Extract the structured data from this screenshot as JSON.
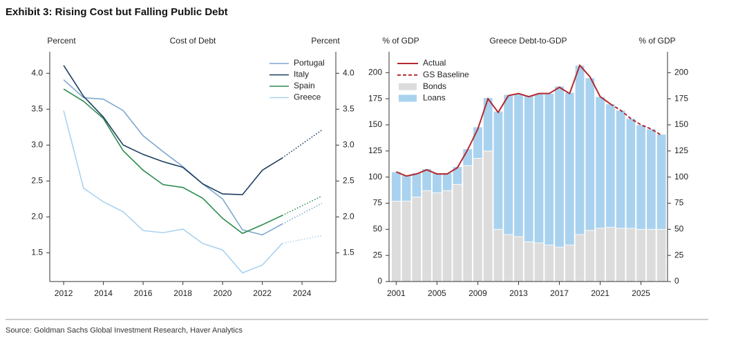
{
  "title": "Exhibit 3: Rising Cost but Falling Public Debt",
  "source": "Source: Goldman Sachs Global Investment Research, Haver Analytics",
  "chart_data": [
    {
      "type": "line",
      "title": "Cost of Debt",
      "y_label": "Percent",
      "y2_label": "Percent",
      "mirror_y": true,
      "forecast_from": 2023,
      "legend": "top-right",
      "x": [
        2012,
        2013,
        2014,
        2015,
        2016,
        2017,
        2018,
        2019,
        2020,
        2021,
        2022,
        2023,
        2025
      ],
      "xlim": [
        2011.3,
        2025.7
      ],
      "xticks": [
        2012,
        2014,
        2016,
        2018,
        2020,
        2022,
        2024
      ],
      "ylim": [
        1.1,
        4.3
      ],
      "yticks": [
        {
          "value": 1.5,
          "label": "1.5"
        },
        {
          "value": 2,
          "label": "2.0"
        },
        {
          "value": 2.5,
          "label": "2.5"
        },
        {
          "value": 3,
          "label": "3.0"
        },
        {
          "value": 3.5,
          "label": "3.5"
        },
        {
          "value": 4,
          "label": "4.0"
        }
      ],
      "series": [
        {
          "name": "Portugal",
          "color": "#7fa7d0",
          "values": [
            3.91,
            3.66,
            3.64,
            3.48,
            3.13,
            2.91,
            2.7,
            2.46,
            2.25,
            1.82,
            1.75,
            1.9,
            2.19
          ]
        },
        {
          "name": "Italy",
          "color": "#1b3d5f",
          "values": [
            4.11,
            3.68,
            3.39,
            3.0,
            2.87,
            2.77,
            2.69,
            2.46,
            2.32,
            2.31,
            2.65,
            2.82,
            3.21
          ]
        },
        {
          "name": "Spain",
          "color": "#2b8c4e",
          "values": [
            3.78,
            3.61,
            3.37,
            2.92,
            2.65,
            2.45,
            2.41,
            2.26,
            1.98,
            1.77,
            1.89,
            2.02,
            2.29
          ]
        },
        {
          "name": "Greece",
          "color": "#a9d2f0",
          "values": [
            3.48,
            2.4,
            2.21,
            2.07,
            1.81,
            1.78,
            1.83,
            1.63,
            1.54,
            1.22,
            1.33,
            1.63,
            1.74
          ]
        }
      ]
    },
    {
      "type": "bar",
      "stacked": true,
      "title": "Greece Debt-to-GDP",
      "y_label": "% of GDP",
      "y2_label": "% of GDP",
      "mirror_y": true,
      "legend": "top-left",
      "x": [
        2001,
        2002,
        2003,
        2004,
        2005,
        2006,
        2007,
        2008,
        2009,
        2010,
        2011,
        2012,
        2013,
        2014,
        2015,
        2016,
        2017,
        2018,
        2019,
        2020,
        2021,
        2022,
        2023,
        2024,
        2025,
        2026,
        2027
      ],
      "xlim": [
        2000.3,
        2027.6
      ],
      "xticks": [
        2001,
        2005,
        2009,
        2013,
        2017,
        2021,
        2025
      ],
      "ylim": [
        0,
        220
      ],
      "yticks": [
        0,
        25,
        50,
        75,
        100,
        125,
        150,
        175,
        200
      ],
      "series": [
        {
          "name": "Actual",
          "type": "line",
          "color": "#b3282d",
          "values": [
            105,
            101,
            103,
            107,
            103,
            103,
            109,
            126,
            146,
            175,
            162,
            178,
            180,
            177,
            180,
            180,
            186,
            180,
            207,
            196,
            177,
            170,
            null,
            null,
            null,
            null,
            null
          ]
        },
        {
          "name": "GS Baseline",
          "type": "line",
          "dashed": true,
          "color": "#b3282d",
          "values": [
            null,
            null,
            null,
            null,
            null,
            null,
            null,
            null,
            null,
            null,
            null,
            null,
            null,
            null,
            null,
            null,
            null,
            null,
            null,
            null,
            null,
            170,
            164,
            156,
            150,
            146,
            140
          ]
        },
        {
          "name": "Bonds",
          "color": "#dcdcdc",
          "values": [
            77,
            77,
            81,
            87,
            85,
            87,
            93,
            111,
            118,
            125,
            50,
            45,
            43,
            38,
            37,
            35,
            33,
            35,
            45,
            49,
            51,
            52,
            51,
            51,
            50,
            50,
            50
          ]
        },
        {
          "name": "Loans",
          "color": "#a9d2ef",
          "values": [
            28,
            25,
            23,
            21,
            19,
            17,
            17,
            16,
            30,
            51,
            113,
            134,
            137,
            140,
            143,
            145,
            154,
            146,
            162,
            146,
            126,
            118,
            113,
            105,
            100,
            96,
            91
          ]
        }
      ]
    }
  ]
}
